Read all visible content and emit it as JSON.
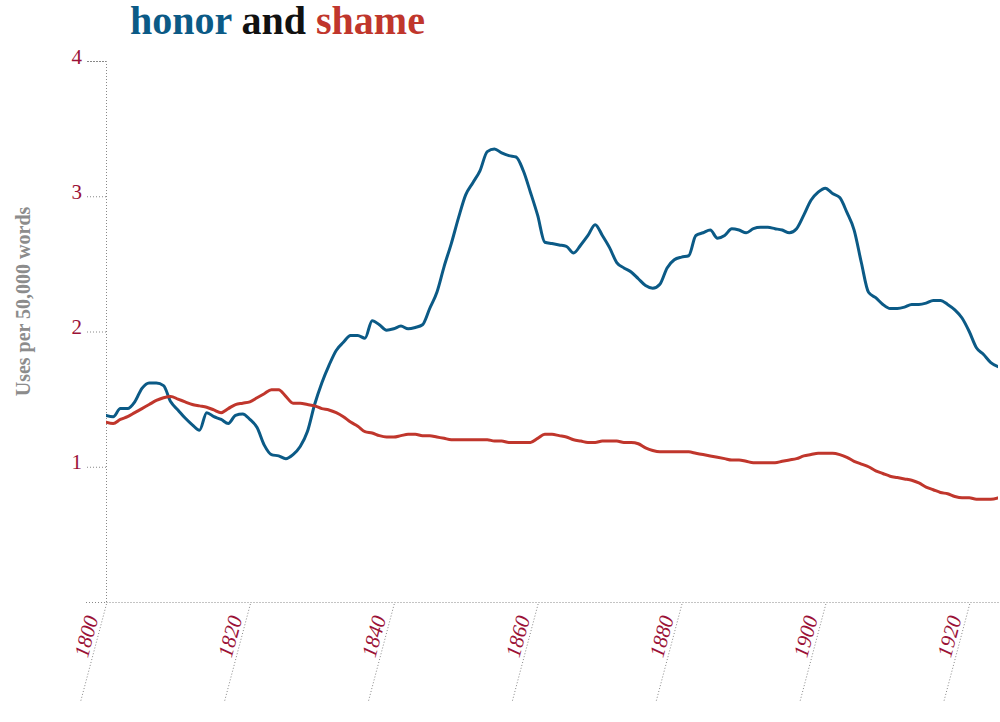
{
  "chart_data": {
    "type": "line",
    "title": "honor and shame",
    "ylabel": "Uses per 50,000 words",
    "x": [
      1800,
      1801,
      1802,
      1803,
      1804,
      1805,
      1806,
      1807,
      1808,
      1809,
      1810,
      1811,
      1812,
      1813,
      1814,
      1815,
      1816,
      1817,
      1818,
      1819,
      1820,
      1821,
      1822,
      1823,
      1824,
      1825,
      1826,
      1827,
      1828,
      1829,
      1830,
      1831,
      1832,
      1833,
      1834,
      1835,
      1836,
      1837,
      1838,
      1839,
      1840,
      1841,
      1842,
      1843,
      1844,
      1845,
      1846,
      1847,
      1848,
      1849,
      1850,
      1851,
      1852,
      1853,
      1854,
      1855,
      1856,
      1857,
      1858,
      1859,
      1860,
      1861,
      1862,
      1863,
      1864,
      1865,
      1866,
      1867,
      1868,
      1869,
      1870,
      1871,
      1872,
      1873,
      1874,
      1875,
      1876,
      1877,
      1878,
      1879,
      1880,
      1881,
      1882,
      1883,
      1884,
      1885,
      1886,
      1887,
      1888,
      1889,
      1890,
      1891,
      1892,
      1893,
      1894,
      1895,
      1896,
      1897,
      1898,
      1899,
      1900,
      1901,
      1902,
      1903,
      1904,
      1905,
      1906,
      1907,
      1908,
      1909,
      1910,
      1911,
      1912,
      1913,
      1914,
      1915,
      1916,
      1917,
      1918,
      1919,
      1920,
      1921,
      1922,
      1923,
      1924
    ],
    "series": [
      {
        "name": "honor",
        "color": "#0b5a86",
        "values": [
          1.38,
          1.37,
          1.43,
          1.43,
          1.48,
          1.58,
          1.62,
          1.62,
          1.6,
          1.48,
          1.42,
          1.36,
          1.31,
          1.27,
          1.4,
          1.37,
          1.35,
          1.32,
          1.38,
          1.39,
          1.35,
          1.29,
          1.16,
          1.09,
          1.08,
          1.06,
          1.09,
          1.15,
          1.26,
          1.46,
          1.62,
          1.75,
          1.86,
          1.92,
          1.97,
          1.97,
          1.95,
          2.08,
          2.05,
          2.01,
          2.02,
          2.04,
          2.02,
          2.03,
          2.05,
          2.17,
          2.29,
          2.48,
          2.65,
          2.84,
          3.01,
          3.1,
          3.19,
          3.33,
          3.35,
          3.32,
          3.3,
          3.29,
          3.19,
          3.03,
          2.86,
          2.66,
          2.65,
          2.64,
          2.63,
          2.58,
          2.64,
          2.71,
          2.79,
          2.71,
          2.62,
          2.51,
          2.47,
          2.44,
          2.39,
          2.34,
          2.32,
          2.35,
          2.47,
          2.53,
          2.55,
          2.56,
          2.71,
          2.73,
          2.75,
          2.69,
          2.71,
          2.76,
          2.75,
          2.73,
          2.76,
          2.77,
          2.77,
          2.76,
          2.75,
          2.73,
          2.76,
          2.86,
          2.97,
          3.03,
          3.06,
          3.02,
          2.99,
          2.88,
          2.75,
          2.51,
          2.29,
          2.25,
          2.2,
          2.17,
          2.17,
          2.18,
          2.2,
          2.2,
          2.21,
          2.23,
          2.23,
          2.2,
          2.16,
          2.1,
          2.0,
          1.88,
          1.83,
          1.77,
          1.74
        ]
      },
      {
        "name": "shame",
        "color": "#c0362c",
        "values": [
          1.33,
          1.32,
          1.35,
          1.37,
          1.4,
          1.43,
          1.46,
          1.49,
          1.51,
          1.52,
          1.5,
          1.48,
          1.46,
          1.45,
          1.44,
          1.42,
          1.4,
          1.43,
          1.46,
          1.47,
          1.48,
          1.51,
          1.54,
          1.57,
          1.57,
          1.52,
          1.47,
          1.47,
          1.46,
          1.45,
          1.43,
          1.42,
          1.4,
          1.37,
          1.33,
          1.3,
          1.26,
          1.25,
          1.23,
          1.22,
          1.22,
          1.23,
          1.24,
          1.24,
          1.23,
          1.23,
          1.22,
          1.21,
          1.2,
          1.2,
          1.2,
          1.2,
          1.2,
          1.2,
          1.19,
          1.19,
          1.18,
          1.18,
          1.18,
          1.18,
          1.21,
          1.24,
          1.24,
          1.23,
          1.22,
          1.2,
          1.19,
          1.18,
          1.18,
          1.19,
          1.19,
          1.19,
          1.18,
          1.18,
          1.17,
          1.14,
          1.12,
          1.11,
          1.11,
          1.11,
          1.11,
          1.11,
          1.1,
          1.09,
          1.08,
          1.07,
          1.06,
          1.05,
          1.05,
          1.04,
          1.03,
          1.03,
          1.03,
          1.03,
          1.04,
          1.05,
          1.06,
          1.08,
          1.09,
          1.1,
          1.1,
          1.1,
          1.09,
          1.07,
          1.04,
          1.02,
          1.0,
          0.97,
          0.95,
          0.93,
          0.92,
          0.91,
          0.9,
          0.88,
          0.85,
          0.83,
          0.81,
          0.8,
          0.78,
          0.77,
          0.77,
          0.76,
          0.76,
          0.76,
          0.77
        ]
      }
    ],
    "xlim": [
      1800,
      1924
    ],
    "xticks": [
      1800,
      1820,
      1840,
      1860,
      1880,
      1900,
      1920
    ],
    "ylim": [
      0,
      4
    ],
    "yticks": [
      1,
      2,
      3,
      4
    ],
    "grid": false
  }
}
